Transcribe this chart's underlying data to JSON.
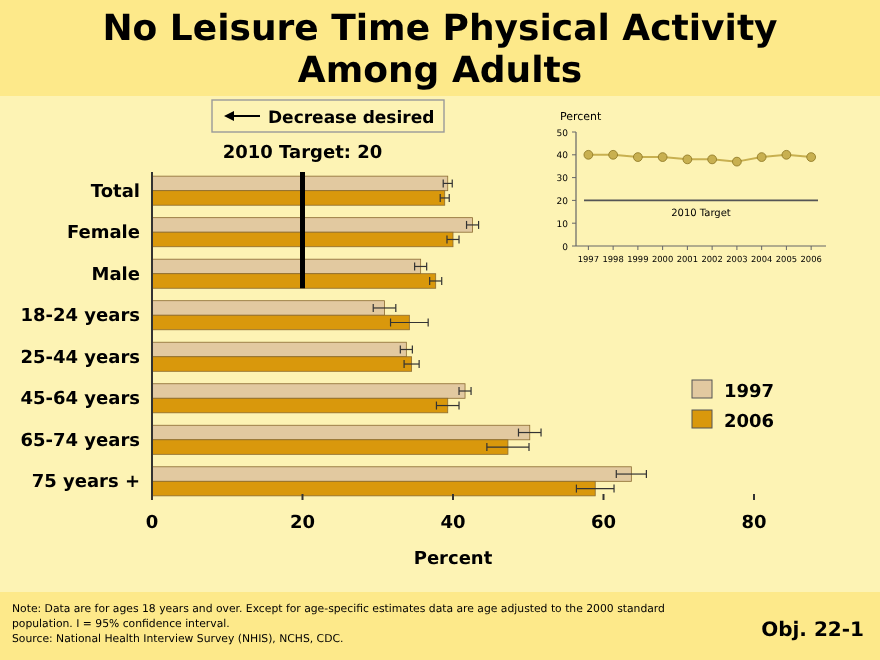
{
  "chart_data": [
    {
      "type": "bar",
      "orientation": "horizontal",
      "title": "No Leisure Time Physical Activity Among Adults",
      "xlabel": "Percent",
      "categories": [
        "Total",
        "Female",
        "Male",
        "18-24 years",
        "25-44 years",
        "45-64 years",
        "65-74 years",
        "75 years +"
      ],
      "series": [
        {
          "name": "1997",
          "color": "#e2c9a0",
          "values": [
            39.3,
            42.6,
            35.7,
            30.9,
            33.8,
            41.6,
            50.2,
            63.7
          ],
          "errors": [
            0.6,
            0.8,
            0.8,
            1.5,
            0.8,
            0.8,
            1.5,
            2
          ]
        },
        {
          "name": "2006",
          "color": "#d9980c",
          "values": [
            38.9,
            40.0,
            37.7,
            34.2,
            34.5,
            39.3,
            47.3,
            58.9
          ],
          "errors": [
            0.6,
            0.8,
            0.8,
            2.5,
            1,
            1.5,
            2.8,
            2.5
          ]
        }
      ],
      "xlim": [
        0,
        80
      ],
      "xticks": [
        0,
        20,
        40,
        60,
        80
      ],
      "grid": false,
      "legend": "right",
      "ref_lines": [
        {
          "axis": "x",
          "value": 20,
          "label": "2010 Target: 20",
          "color": "#000000"
        }
      ],
      "annotations": [
        "Decrease desired",
        "Note:  Data are for ages 18 years and over. Except for age-specific estimates data are age adjusted to the 2000 standard population. I = 95% confidence interval.",
        "Source: National Health Interview Survey (NHIS), NCHS, CDC.",
        "Obj. 22-1"
      ]
    },
    {
      "type": "line",
      "ylabel": "Percent",
      "x": [
        1997,
        1998,
        1999,
        2000,
        2001,
        2002,
        2003,
        2004,
        2005,
        2006
      ],
      "series": [
        {
          "color": "#c8b050",
          "values": [
            40,
            40,
            39,
            39,
            38,
            38,
            37,
            39,
            40,
            39
          ]
        }
      ],
      "xlim": [
        1996.5,
        2006.6
      ],
      "xticks": [
        1997,
        1998,
        1999,
        2000,
        2001,
        2002,
        2003,
        2004,
        2005,
        2006
      ],
      "ylim": [
        0,
        50
      ],
      "yticks": [
        0,
        10,
        20,
        30,
        40,
        50
      ],
      "marker": "circle",
      "line_style": "solid",
      "ref_lines": [
        {
          "axis": "y",
          "value": 20,
          "label": "2010 Target",
          "color": "#555555"
        }
      ]
    }
  ]
}
